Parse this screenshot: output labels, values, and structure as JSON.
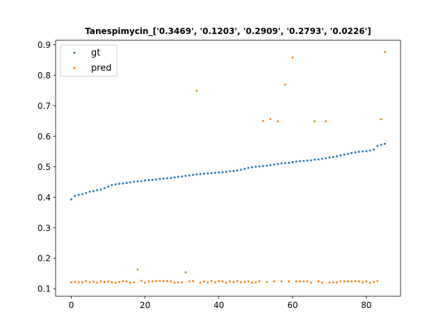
{
  "chart_data": {
    "type": "scatter",
    "title": "Tanespimycin_['0.3469', '0.1203', '0.2909', '0.2793', '0.0226']",
    "xlabel": "",
    "ylabel": "",
    "xlim": [
      -4.25,
      89.25
    ],
    "ylim": [
      0.0755,
      0.9145
    ],
    "xticks": [
      0,
      20,
      40,
      60,
      80
    ],
    "xtick_labels": [
      "0",
      "20",
      "40",
      "60",
      "80"
    ],
    "yticks": [
      0.1,
      0.2,
      0.3,
      0.4,
      0.5,
      0.6,
      0.7,
      0.8,
      0.9
    ],
    "ytick_labels": [
      "0.1",
      "0.2",
      "0.3",
      "0.4",
      "0.5",
      "0.6",
      "0.7",
      "0.8",
      "0.9"
    ],
    "grid": false,
    "legend_position": "top-left",
    "x": [
      0,
      1,
      2,
      3,
      4,
      5,
      6,
      7,
      8,
      9,
      10,
      11,
      12,
      13,
      14,
      15,
      16,
      17,
      18,
      19,
      20,
      21,
      22,
      23,
      24,
      25,
      26,
      27,
      28,
      29,
      30,
      31,
      32,
      33,
      34,
      35,
      36,
      37,
      38,
      39,
      40,
      41,
      42,
      43,
      44,
      45,
      46,
      47,
      48,
      49,
      50,
      51,
      52,
      53,
      54,
      55,
      56,
      57,
      58,
      59,
      60,
      61,
      62,
      63,
      64,
      65,
      66,
      67,
      68,
      69,
      70,
      71,
      72,
      73,
      74,
      75,
      76,
      77,
      78,
      79,
      80,
      81,
      82,
      83,
      84,
      85
    ],
    "series": [
      {
        "name": "gt",
        "color": "#1f77b4",
        "values": [
          0.393,
          0.404,
          0.408,
          0.41,
          0.414,
          0.418,
          0.42,
          0.423,
          0.425,
          0.43,
          0.435,
          0.44,
          0.442,
          0.444,
          0.445,
          0.447,
          0.449,
          0.451,
          0.452,
          0.453,
          0.455,
          0.456,
          0.457,
          0.458,
          0.46,
          0.461,
          0.462,
          0.463,
          0.465,
          0.467,
          0.468,
          0.47,
          0.471,
          0.473,
          0.475,
          0.476,
          0.477,
          0.478,
          0.479,
          0.48,
          0.481,
          0.482,
          0.483,
          0.485,
          0.486,
          0.488,
          0.49,
          0.493,
          0.496,
          0.498,
          0.5,
          0.501,
          0.502,
          0.503,
          0.505,
          0.507,
          0.509,
          0.511,
          0.512,
          0.513,
          0.515,
          0.517,
          0.518,
          0.519,
          0.52,
          0.521,
          0.523,
          0.524,
          0.526,
          0.528,
          0.53,
          0.532,
          0.534,
          0.537,
          0.54,
          0.542,
          0.545,
          0.547,
          0.549,
          0.55,
          0.551,
          0.553,
          0.556,
          0.568,
          0.572,
          0.575
        ]
      },
      {
        "name": "pred",
        "color": "#ff7f0e",
        "values": [
          0.121,
          0.122,
          0.121,
          0.121,
          0.125,
          0.121,
          0.123,
          0.12,
          0.124,
          0.122,
          0.124,
          0.121,
          0.12,
          0.122,
          0.125,
          0.124,
          0.12,
          0.121,
          0.163,
          0.126,
          0.12,
          0.124,
          0.124,
          0.125,
          0.126,
          0.125,
          0.125,
          0.124,
          0.12,
          0.121,
          0.121,
          0.154,
          0.124,
          0.125,
          0.749,
          0.12,
          0.124,
          0.121,
          0.125,
          0.121,
          0.125,
          0.124,
          0.12,
          0.124,
          0.122,
          0.125,
          0.121,
          0.122,
          0.124,
          0.12,
          0.121,
          0.124,
          0.65,
          0.122,
          0.656,
          0.124,
          0.649,
          0.124,
          0.769,
          0.124,
          0.858,
          0.124,
          0.124,
          0.124,
          0.124,
          0.12,
          0.649,
          0.124,
          0.12,
          0.649,
          0.12,
          0.121,
          0.121,
          0.124,
          0.124,
          0.124,
          0.124,
          0.125,
          0.124,
          0.121,
          0.124,
          0.12,
          0.122,
          0.125,
          0.656,
          0.876
        ]
      }
    ]
  }
}
